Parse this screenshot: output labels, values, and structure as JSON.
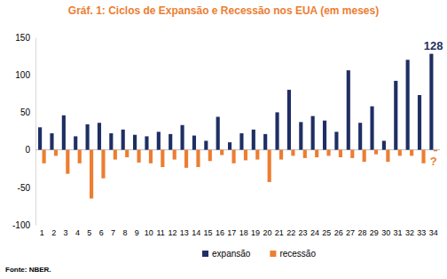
{
  "chart_data": {
    "type": "bar",
    "title": "Gráf. 1: Ciclos de Expansão e Recessão nos EUA (em meses)",
    "source": "Fonte: NBER.",
    "categories": [
      "1",
      "2",
      "3",
      "4",
      "5",
      "6",
      "7",
      "8",
      "9",
      "10",
      "11",
      "12",
      "13",
      "14",
      "15",
      "16",
      "17",
      "18",
      "19",
      "20",
      "21",
      "22",
      "23",
      "24",
      "25",
      "26",
      "27",
      "28",
      "29",
      "30",
      "31",
      "32",
      "33",
      "34"
    ],
    "series": [
      {
        "name": "expansão",
        "color": "#1f2f64",
        "values": [
          30,
          22,
          46,
          18,
          34,
          36,
          22,
          27,
          20,
          18,
          24,
          21,
          33,
          19,
          12,
          44,
          10,
          22,
          27,
          21,
          50,
          80,
          37,
          45,
          39,
          24,
          106,
          36,
          58,
          12,
          92,
          120,
          73,
          128
        ]
      },
      {
        "name": "recessão",
        "color": "#ed7d31",
        "values": [
          -18,
          -8,
          -32,
          -18,
          -65,
          -38,
          -13,
          -10,
          -17,
          -18,
          -23,
          -13,
          -24,
          -23,
          -15,
          -7,
          -18,
          -14,
          -13,
          -43,
          -13,
          -8,
          -11,
          -10,
          -8,
          -10,
          -11,
          -16,
          -6,
          -16,
          -8,
          -8,
          -18,
          -2
        ]
      }
    ],
    "annotations": [
      {
        "text": "128",
        "x": "34",
        "y": 128,
        "color": "#1f2f64"
      },
      {
        "text": "?",
        "x": "34",
        "y": -2,
        "color": "#ed7d31"
      }
    ],
    "ylim": [
      -100,
      150
    ],
    "yticks": [
      -100,
      -50,
      0,
      50,
      100,
      150
    ],
    "grid": false,
    "legend": "bottom"
  }
}
